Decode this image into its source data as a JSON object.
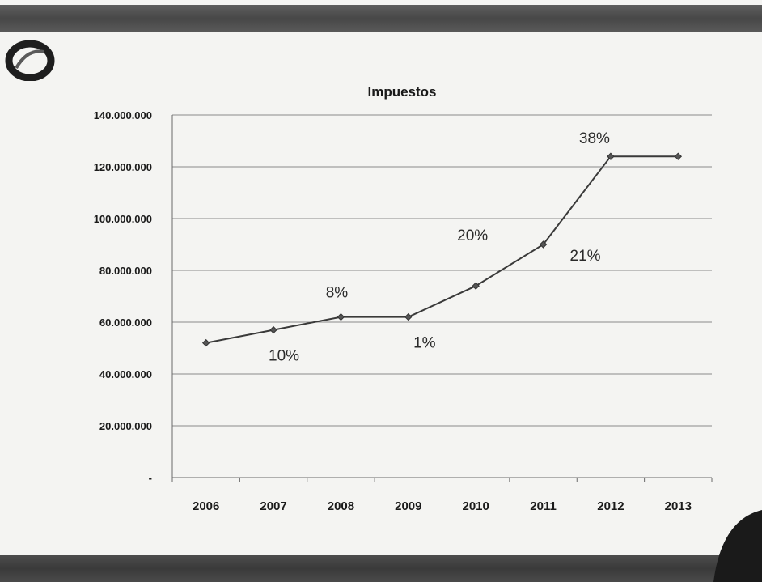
{
  "colors": {
    "band": "#4a4a4a",
    "line": "#3a3a3a",
    "grid": "#8a8a8a",
    "background": "#f4f4f2"
  },
  "icons": {
    "logo": "ring-logo-icon",
    "corner": "corner-shape"
  },
  "chart_data": {
    "type": "line",
    "title": "Impuestos",
    "xlabel": "",
    "ylabel": "",
    "categories": [
      "2006",
      "2007",
      "2008",
      "2009",
      "2010",
      "2011",
      "2012",
      "2013"
    ],
    "series": [
      {
        "values": [
          52000000,
          57000000,
          62000000,
          62000000,
          74000000,
          90000000,
          124000000,
          124000000
        ]
      }
    ],
    "ylim": [
      0,
      140000000
    ],
    "yticks": [
      0,
      20000000,
      40000000,
      60000000,
      80000000,
      100000000,
      120000000,
      140000000
    ],
    "ytick_labels": [
      "-",
      "20.000.000",
      "40.000.000",
      "60.000.000",
      "80.000.000",
      "100.000.000",
      "120.000.000",
      "140.000.000"
    ],
    "grid": true,
    "legend": "none",
    "annotations": [
      {
        "text": "10%",
        "x": "2007"
      },
      {
        "text": "8%",
        "x": "2008"
      },
      {
        "text": "1%",
        "x": "2009"
      },
      {
        "text": "20%",
        "x": "2010"
      },
      {
        "text": "21%",
        "x": "2011"
      },
      {
        "text": "38%",
        "x": "2012"
      }
    ]
  }
}
